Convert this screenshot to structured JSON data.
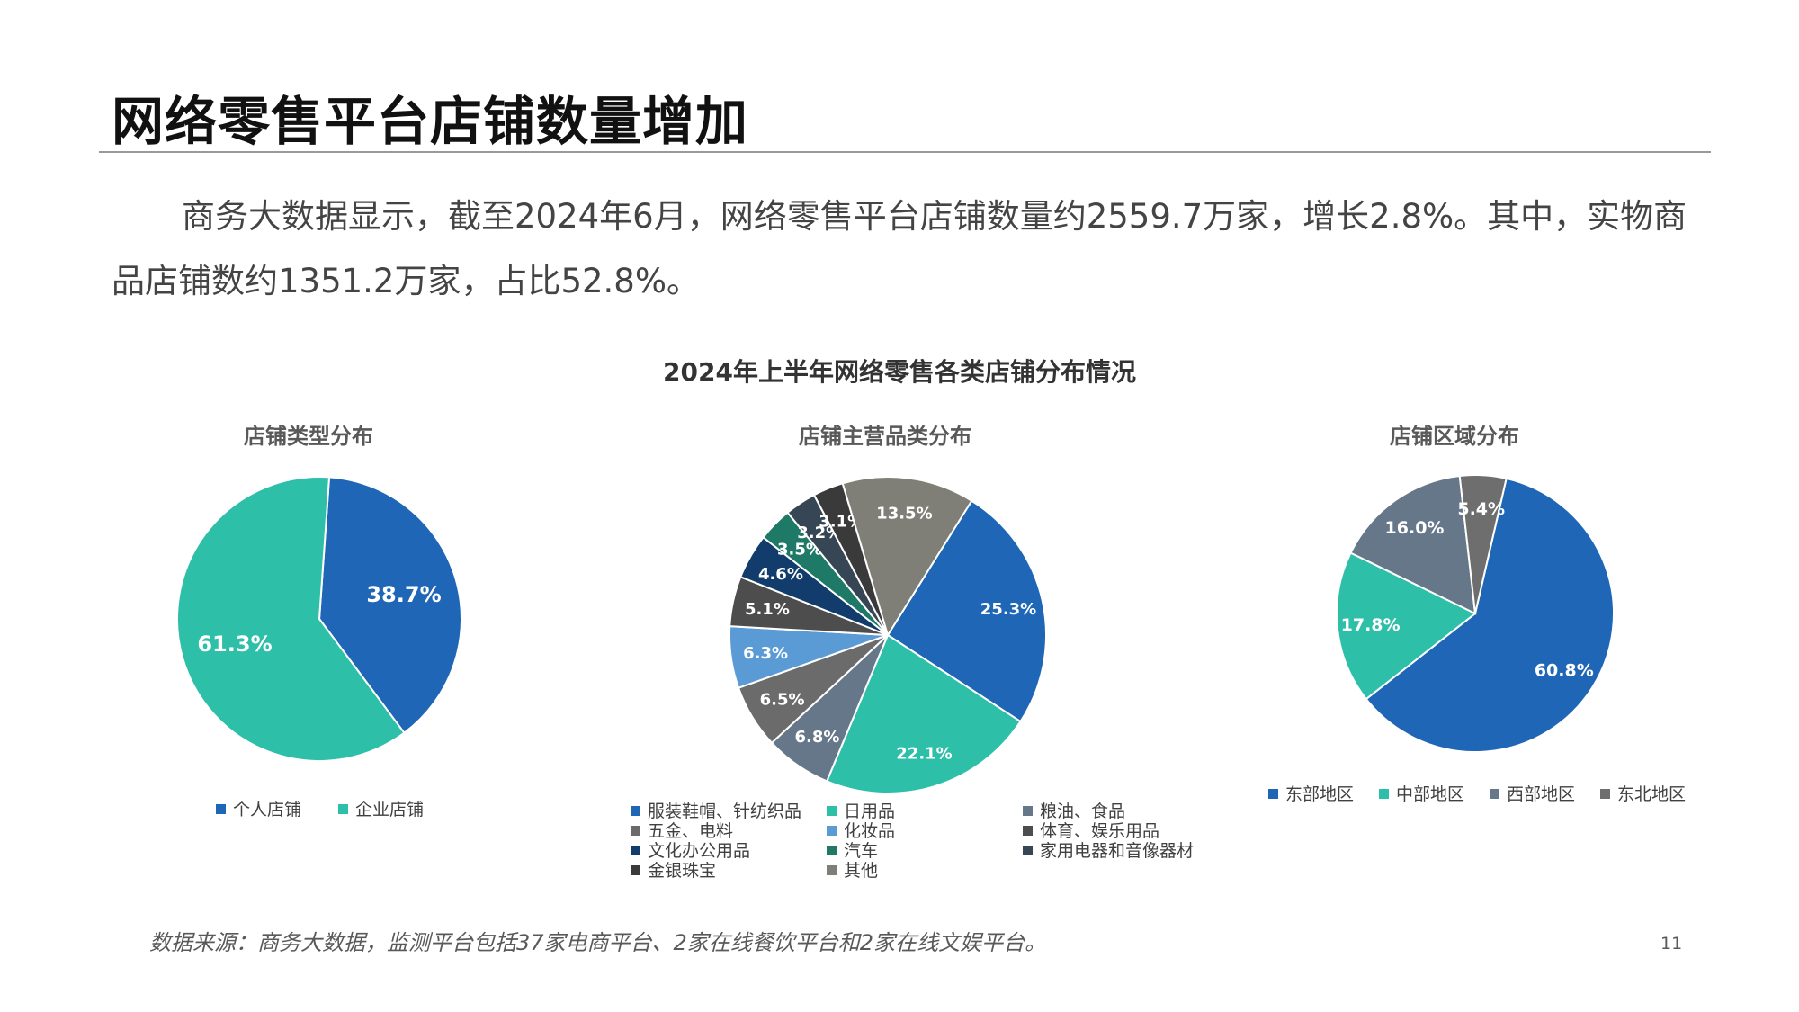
{
  "slide": {
    "title": "网络零售平台店铺数量增加",
    "intro": "商务大数据显示，截至2024年6月，网络零售平台店铺数量约2559.7万家，增长2.8%。其中，实物商品店铺数约1351.2万家，占比52.8%。",
    "figure_title": "2024年上半年网络零售各类店铺分布情况",
    "footnote": "数据来源：商务大数据，监测平台包括37家电商平台、2家在线餐饮平台和2家在线文娱平台。",
    "page_number": "11"
  },
  "chart_data": [
    {
      "type": "pie",
      "title": "店铺类型分布",
      "categories": [
        "个人店铺",
        "企业店铺"
      ],
      "values": [
        38.7,
        61.3
      ],
      "labels": [
        "38.7%",
        "61.3%"
      ],
      "colors": [
        "#1F67B6",
        "#2EBFA9"
      ],
      "legend": "bottom"
    },
    {
      "type": "pie",
      "title": "店铺主营品类分布",
      "categories": [
        "服装鞋帽、针纺织品",
        "日用品",
        "粮油、食品",
        "五金、电料",
        "化妆品",
        "体育、娱乐用品",
        "文化办公用品",
        "汽车",
        "家用电器和音像器材",
        "金银珠宝",
        "其他"
      ],
      "values": [
        25.3,
        22.1,
        6.8,
        6.5,
        6.3,
        5.1,
        4.6,
        3.5,
        3.2,
        3.1,
        13.5
      ],
      "labels": [
        "25.3%",
        "22.1%",
        "6.8%",
        "6.5%",
        "6.3%",
        "5.1%",
        "4.6%",
        "3.5%",
        "3.2%",
        "3.1%",
        "13.5%"
      ],
      "colors": [
        "#1F67B6",
        "#2EBFA9",
        "#66778A",
        "#6B6B6B",
        "#5B9BD5",
        "#4D4D4D",
        "#123C6B",
        "#1E7A66",
        "#374654",
        "#3A3A3A",
        "#7F7F77"
      ],
      "legend": "bottom"
    },
    {
      "type": "pie",
      "title": "店铺区域分布",
      "categories": [
        "东部地区",
        "中部地区",
        "西部地区",
        "东北地区"
      ],
      "values": [
        60.8,
        17.8,
        16.0,
        5.4
      ],
      "labels": [
        "60.8%",
        "17.8%",
        "16.0%",
        "5.4%"
      ],
      "colors": [
        "#1F67B6",
        "#2EBFA9",
        "#66778A",
        "#6E6E6E"
      ],
      "legend": "bottom"
    }
  ]
}
